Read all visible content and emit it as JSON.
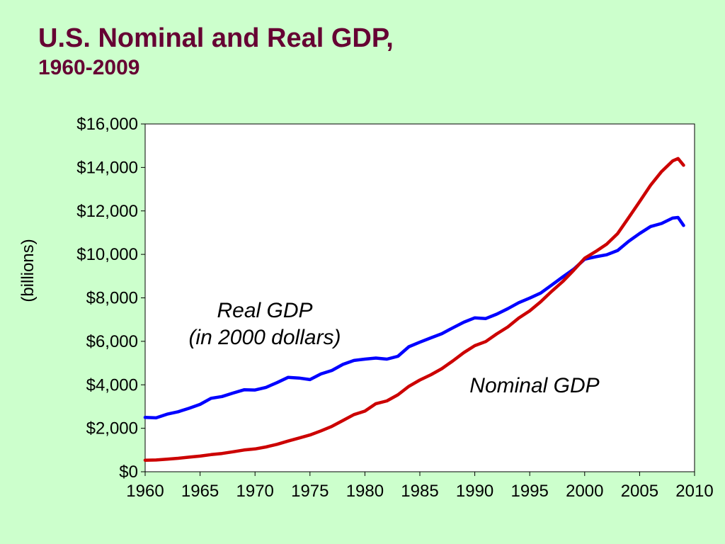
{
  "title": {
    "line1": "U.S. Nominal and Real GDP,",
    "line2": "1960-2009"
  },
  "colors": {
    "background": "#ccffcc",
    "title": "#660033",
    "real_gdp": "#0000ff",
    "nominal_gdp": "#cc0000"
  },
  "chart_data": {
    "type": "line",
    "xlim": [
      1960,
      2010
    ],
    "ylim": [
      0,
      16000
    ],
    "x_ticks": [
      "1960",
      "1965",
      "1970",
      "1975",
      "1980",
      "1985",
      "1990",
      "1995",
      "2000",
      "2005",
      "2010"
    ],
    "y_ticks": [
      "$0",
      "$2,000",
      "$4,000",
      "$6,000",
      "$8,000",
      "$10,000",
      "$12,000",
      "$14,000",
      "$16,000"
    ],
    "ylabel": "(billions)",
    "grid": false,
    "annotations": {
      "real_line1": "Real GDP",
      "real_line2": "(in 2000 dollars)",
      "nominal": "Nominal GDP"
    },
    "series": [
      {
        "name": "Real GDP",
        "color": "#0000ff",
        "x": [
          1960,
          1961,
          1962,
          1963,
          1964,
          1965,
          1966,
          1967,
          1968,
          1969,
          1970,
          1971,
          1972,
          1973,
          1974,
          1975,
          1976,
          1977,
          1978,
          1979,
          1980,
          1981,
          1982,
          1983,
          1984,
          1985,
          1986,
          1987,
          1988,
          1989,
          1990,
          1991,
          1992,
          1993,
          1994,
          1995,
          1996,
          1997,
          1998,
          1999,
          2000,
          2001,
          2002,
          2003,
          2004,
          2005,
          2006,
          2007,
          2008,
          2008.5,
          2009
        ],
        "y": [
          2500,
          2480,
          2650,
          2760,
          2920,
          3100,
          3380,
          3460,
          3620,
          3770,
          3760,
          3880,
          4100,
          4340,
          4310,
          4240,
          4500,
          4660,
          4940,
          5120,
          5180,
          5230,
          5180,
          5310,
          5750,
          5960,
          6160,
          6350,
          6620,
          6880,
          7080,
          7050,
          7250,
          7500,
          7780,
          7990,
          8220,
          8590,
          8960,
          9320,
          9780,
          9890,
          9980,
          10180,
          10600,
          10960,
          11280,
          11420,
          11670,
          11700,
          11330
        ]
      },
      {
        "name": "Nominal GDP",
        "color": "#cc0000",
        "x": [
          1960,
          1961,
          1962,
          1963,
          1964,
          1965,
          1966,
          1967,
          1968,
          1969,
          1970,
          1971,
          1972,
          1973,
          1974,
          1975,
          1976,
          1977,
          1978,
          1979,
          1980,
          1981,
          1982,
          1983,
          1984,
          1985,
          1986,
          1987,
          1988,
          1989,
          1990,
          1991,
          1992,
          1993,
          1994,
          1995,
          1996,
          1997,
          1998,
          1999,
          2000,
          2001,
          2002,
          2003,
          2004,
          2005,
          2006,
          2007,
          2008,
          2008.5,
          2009
        ],
        "y": [
          530,
          540,
          580,
          620,
          670,
          720,
          790,
          840,
          920,
          1000,
          1050,
          1140,
          1260,
          1410,
          1550,
          1690,
          1880,
          2090,
          2360,
          2630,
          2790,
          3130,
          3260,
          3540,
          3930,
          4220,
          4460,
          4740,
          5100,
          5480,
          5800,
          5990,
          6340,
          6660,
          7070,
          7400,
          7820,
          8300,
          8750,
          9270,
          9820,
          10130,
          10470,
          10960,
          11690,
          12430,
          13180,
          13810,
          14300,
          14410,
          14100
        ]
      }
    ]
  }
}
